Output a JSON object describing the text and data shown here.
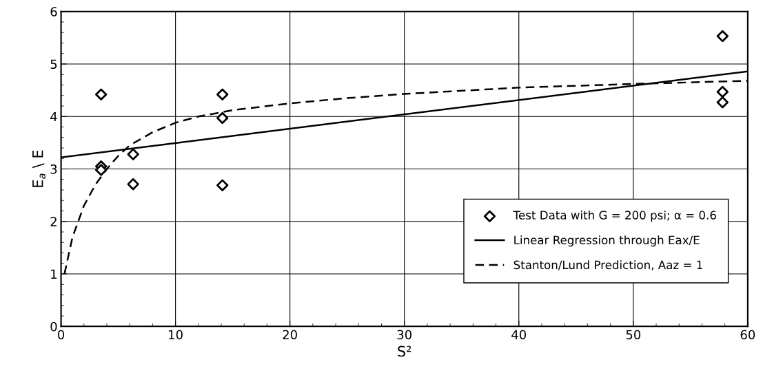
{
  "chart_data": {
    "type": "scatter",
    "xlabel": "S²",
    "ylabel": "E$_{a}$ \\ E",
    "xlim": [
      0,
      60
    ],
    "xticks": [
      0,
      10,
      20,
      30,
      40,
      50,
      60
    ],
    "ylim": [
      0,
      6
    ],
    "yticks": [
      0,
      1,
      2,
      3,
      4,
      5,
      6
    ],
    "grid": true,
    "legend": "bottom right",
    "series": [
      {
        "name": "Test Data with G = 200 psi; α = 0.6",
        "marker": "diamond",
        "color": "#000000",
        "x": [
          3.5,
          3.5,
          3.5,
          6.3,
          6.3,
          14.1,
          14.1,
          14.1,
          57.8,
          57.8,
          57.8
        ],
        "values": [
          4.42,
          3.05,
          2.98,
          3.28,
          2.71,
          4.42,
          3.97,
          2.69,
          5.53,
          4.47,
          4.27
        ]
      },
      {
        "name": "Linear Regression through Eax/E",
        "type": "line",
        "line_style": "solid",
        "color": "#000000",
        "x": [
          0,
          60
        ],
        "values": [
          3.22,
          4.86
        ]
      },
      {
        "name": "Stanton/Lund Prediction, Aaz = 1",
        "type": "line",
        "line_style": "dashed",
        "color": "#000000",
        "x": [
          0.3,
          1,
          2,
          3,
          4,
          5,
          6,
          8,
          10,
          12,
          15,
          20,
          25,
          30,
          40,
          50,
          60
        ],
        "values": [
          1.0,
          1.7,
          2.3,
          2.7,
          3.0,
          3.25,
          3.45,
          3.7,
          3.88,
          4.0,
          4.12,
          4.25,
          4.35,
          4.43,
          4.55,
          4.62,
          4.68
        ]
      }
    ]
  }
}
